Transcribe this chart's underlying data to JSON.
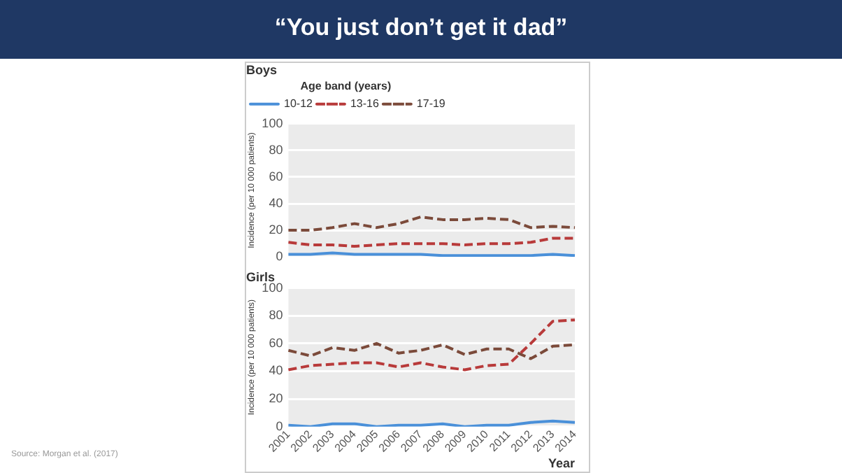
{
  "chart_data": [
    {
      "type": "line",
      "title": "Boys",
      "annotations": [
        "“You just don’t get it dad”"
      ],
      "ylabel": "Incidence (per 10 000 patients)",
      "legend_title": "Age band (years)",
      "legend": "top left",
      "grid": "y",
      "tick_labels": "y",
      "marker": "none",
      "categories": [
        "2001",
        "2002",
        "2003",
        "2004",
        "2005",
        "2006",
        "2007",
        "2008",
        "2009",
        "2010",
        "2011",
        "2012",
        "2013",
        "2014"
      ],
      "ylim": [
        0,
        100
      ],
      "yticks": [
        0,
        20,
        40,
        60,
        80,
        100
      ],
      "series": [
        {
          "name": "10-12",
          "color": "#4a90d9",
          "line_style": "solid",
          "values": [
            2,
            2,
            3,
            2,
            2,
            2,
            2,
            1,
            1,
            1,
            1,
            1,
            2,
            1
          ]
        },
        {
          "name": "13-16",
          "color": "#b83a3a",
          "line_style": "dashed",
          "values": [
            11,
            9,
            9,
            8,
            9,
            10,
            10,
            10,
            9,
            10,
            10,
            11,
            14,
            14
          ]
        },
        {
          "name": "17-19",
          "color": "#7b4a3a",
          "line_style": "dashed",
          "values": [
            20,
            20,
            22,
            25,
            22,
            25,
            30,
            28,
            28,
            29,
            28,
            22,
            23,
            22
          ]
        }
      ]
    },
    {
      "type": "line",
      "title": "Girls",
      "annotations": [
        "Source: Morgan et al. (2017)"
      ],
      "xlabel": "Year",
      "ylabel": "Incidence (per 10 000 patients)",
      "grid": "y",
      "marker": "none",
      "categories": [
        "2001",
        "2002",
        "2003",
        "2004",
        "2005",
        "2006",
        "2007",
        "2008",
        "2009",
        "2010",
        "2011",
        "2012",
        "2013",
        "2014"
      ],
      "ylim": [
        0,
        100
      ],
      "yticks": [
        0,
        20,
        40,
        60,
        80,
        100
      ],
      "series": [
        {
          "color": "#4a90d9",
          "line_style": "solid",
          "values": [
            1,
            0,
            2,
            2,
            0,
            1,
            1,
            2,
            0,
            1,
            1,
            3,
            4,
            3
          ]
        },
        {
          "color": "#b83a3a",
          "line_style": "dashed",
          "values": [
            41,
            44,
            45,
            46,
            46,
            43,
            46,
            43,
            41,
            44,
            45,
            60,
            76,
            77
          ]
        },
        {
          "color": "#7b4a3a",
          "line_style": "dashed",
          "values": [
            55,
            51,
            57,
            55,
            60,
            53,
            55,
            59,
            52,
            56,
            56,
            49,
            58,
            59
          ]
        }
      ]
    }
  ]
}
